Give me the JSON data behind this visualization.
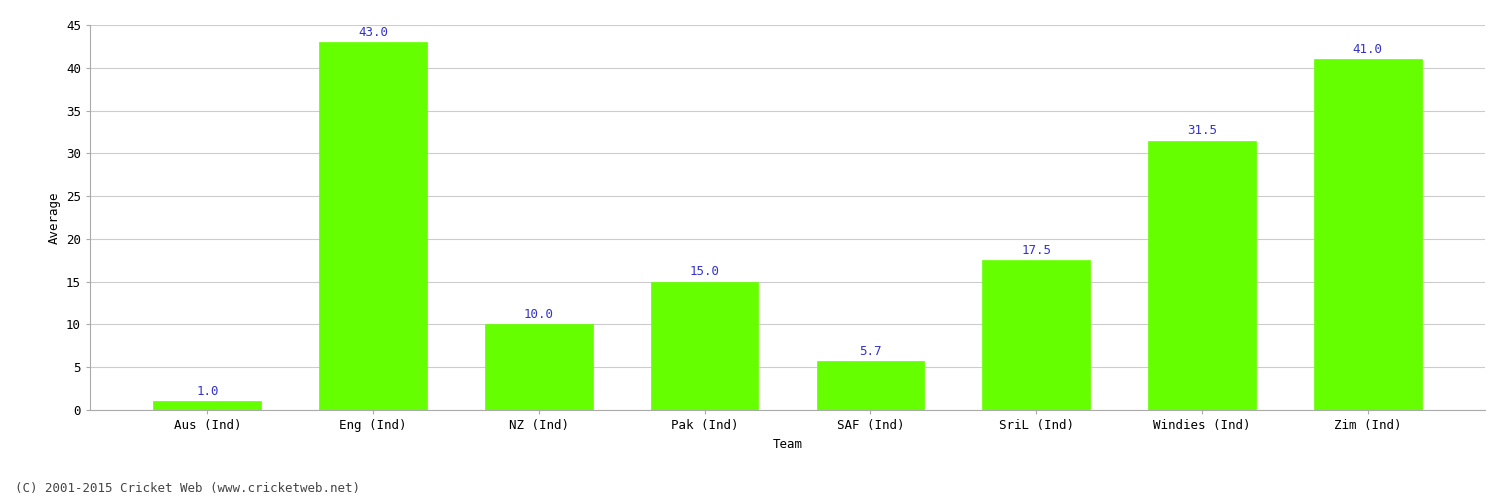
{
  "categories": [
    "Aus (Ind)",
    "Eng (Ind)",
    "NZ (Ind)",
    "Pak (Ind)",
    "SAF (Ind)",
    "SriL (Ind)",
    "Windies (Ind)",
    "Zim (Ind)"
  ],
  "values": [
    1.0,
    43.0,
    10.0,
    15.0,
    5.7,
    17.5,
    31.5,
    41.0
  ],
  "bar_color": "#66ff00",
  "bar_edgecolor": "#66ff00",
  "xlabel": "Team",
  "ylabel": "Average",
  "ylim": [
    0,
    45
  ],
  "yticks": [
    0,
    5,
    10,
    15,
    20,
    25,
    30,
    35,
    40,
    45
  ],
  "label_color": "#3333cc",
  "label_fontsize": 9,
  "axis_label_fontsize": 9,
  "tick_fontsize": 9,
  "background_color": "#ffffff",
  "grid_color": "#cccccc",
  "footer_text": "(C) 2001-2015 Cricket Web (www.cricketweb.net)",
  "footer_fontsize": 9,
  "footer_color": "#444444"
}
